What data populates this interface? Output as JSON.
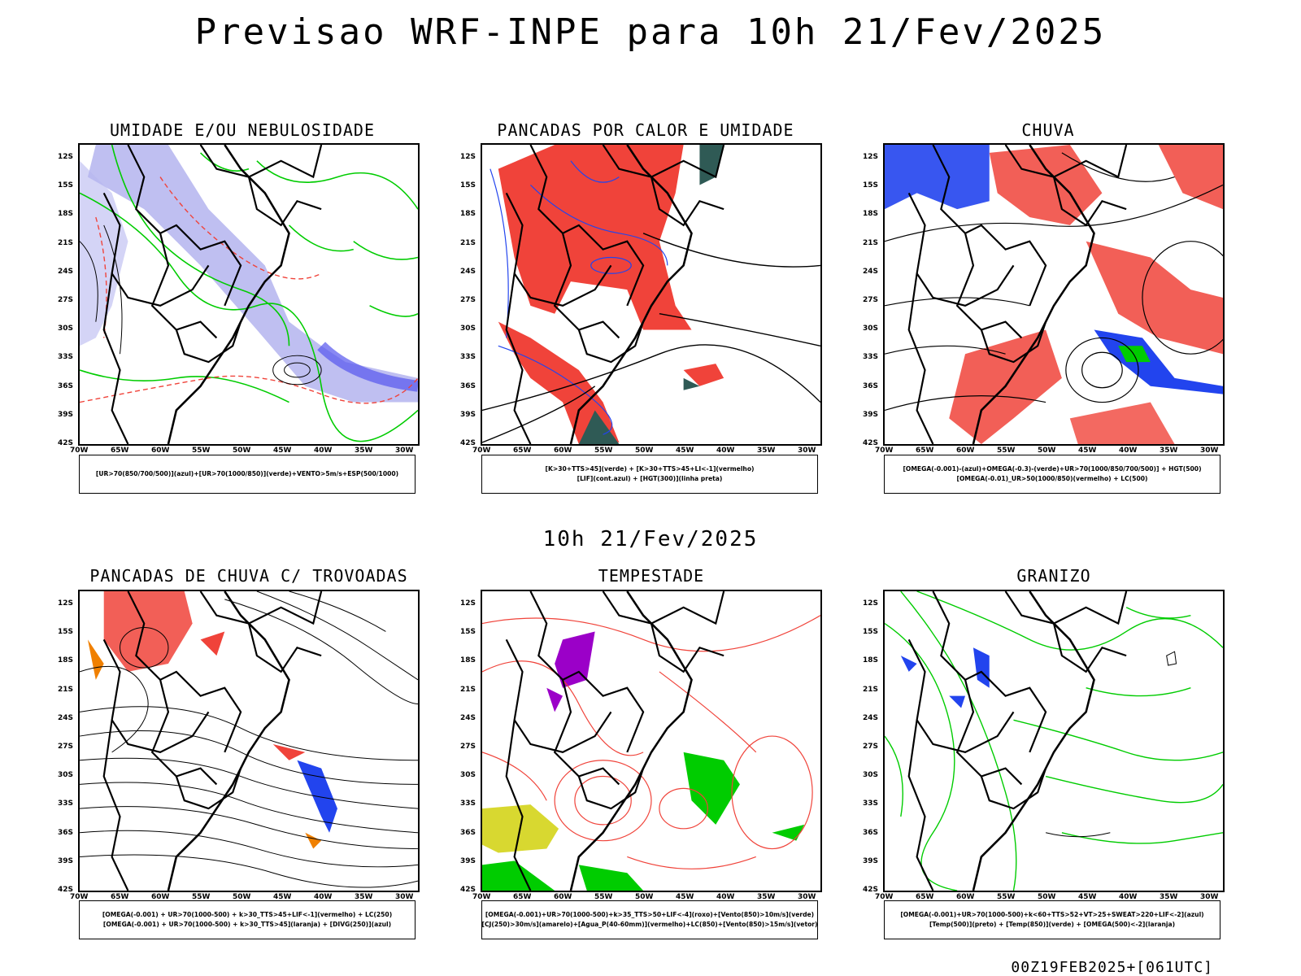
{
  "title": "Previsao WRF-INPE  para 10h 21/Fev/2025",
  "subtitle": "10h 21/Fev/2025",
  "footer": "00Z19FEB2025+[061UTC]",
  "lat_labels": [
    "12S",
    "15S",
    "18S",
    "21S",
    "24S",
    "27S",
    "30S",
    "33S",
    "36S",
    "39S",
    "42S"
  ],
  "lon_labels": [
    "70W",
    "65W",
    "60W",
    "55W",
    "50W",
    "45W",
    "40W",
    "35W",
    "30W"
  ],
  "panels": [
    {
      "title": "UMIDADE E/OU NEBULOSIDADE",
      "legend": [
        "[UR>70(850/700/500)](azul)+[UR>70(1000/850)](verde)+VENTO>5m/s+ESP(500/1000)"
      ]
    },
    {
      "title": "PANCADAS POR CALOR E UMIDADE",
      "legend": [
        "[K>30+TTS>45](verde) + [K>30+TTS>45+LI<-1](vermelho)",
        "[LIF](cont.azul) + [HGT(300)](linha preta)"
      ]
    },
    {
      "title": "CHUVA",
      "legend": [
        "[OMEGA(-0.001)-(azul)+OMEGA(-0.3)-(verde)+UR>70(1000/850/700/500)] + HGT(500)",
        "[OMEGA(-0.01)_UR>50(1000/850)(vermelho) + LC(500)"
      ]
    },
    {
      "title": "PANCADAS DE CHUVA C/ TROVOADAS",
      "legend": [
        "[OMEGA(-0.001) + UR>70(1000-500) + k>30_TTS>45+LIF<-1](vermelho) + LC(250)",
        "[OMEGA(-0.001) + UR>70(1000-500) + k>30_TTS>45](laranja) + [DIVG(250)](azul)"
      ]
    },
    {
      "title": "TEMPESTADE",
      "legend": [
        "[OMEGA(-0.001)+UR>70(1000-500)+k>35_TTS>50+LIF<-4](roxo)+[Vento(850)>10m/s](verde)",
        "[CJ(250)>30m/s](amarelo)+[Agua_P(40-60mm)](vermelho)+LC(850)+[Vento(850)>15m/s](vetor)"
      ]
    },
    {
      "title": "GRANIZO",
      "legend": [
        "[OMEGA(-0.001)+UR>70(1000-500)+k<60+TTS>52+VT>25+SWEAT>220+LIF<-2](azul)",
        "[Temp(500)](preto) + [Temp(850)](verde) + [OMEGA(500)<-2](laranja)"
      ]
    }
  ],
  "colors": {
    "red": "#f0433a",
    "green": "#00cc00",
    "blue": "#2244ee",
    "lavender": "#b8b8f0",
    "teal": "#2f5a55",
    "purple": "#9b00c8",
    "yellow": "#d8d830",
    "orange": "#f08000"
  }
}
